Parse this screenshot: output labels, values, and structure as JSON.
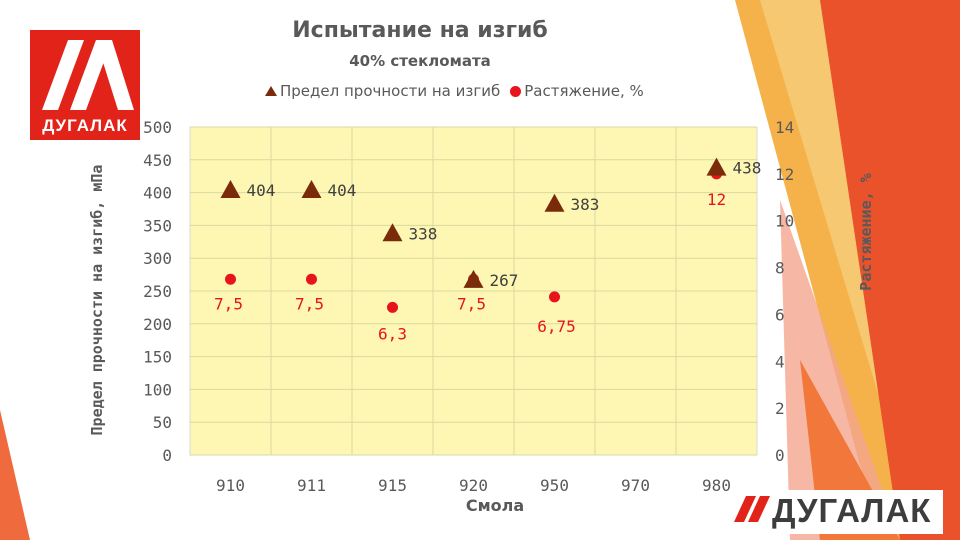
{
  "slide": {
    "logo_top_text": "ДУГАЛАК",
    "logo_bottom_text": "ДУГАЛАК",
    "colors": {
      "accent_orange": "#f08a24",
      "accent_red": "#e2362a",
      "logo_red": "#e2231a"
    }
  },
  "chart_data": {
    "type": "scatter",
    "title": "Испытание на изгиб",
    "subtitle": "40% стекломата",
    "xlabel": "Смола",
    "ylabel_left": "Предел прочности на изгиб, мПа",
    "ylabel_right": "Растяжение, %",
    "categories": [
      "910",
      "911",
      "915",
      "920",
      "950",
      "970",
      "980"
    ],
    "y_left_lim": [
      0,
      500
    ],
    "y_left_ticks": [
      "0",
      "50",
      "100",
      "150",
      "200",
      "250",
      "300",
      "350",
      "400",
      "450",
      "500"
    ],
    "y_right_lim": [
      0,
      14
    ],
    "y_right_ticks": [
      "0",
      "2",
      "4",
      "6",
      "8",
      "10",
      "12",
      "14"
    ],
    "legend_position": "top",
    "grid": true,
    "plot_background": "#fdf7b3",
    "series": [
      {
        "name": "Предел прочности на изгиб",
        "axis": "left",
        "marker": "triangle",
        "color": "#7a2c0a",
        "points": [
          {
            "x": "910",
            "y": 404,
            "label": "404"
          },
          {
            "x": "911",
            "y": 404,
            "label": "404"
          },
          {
            "x": "915",
            "y": 338,
            "label": "338"
          },
          {
            "x": "920",
            "y": 267,
            "label": "267"
          },
          {
            "x": "950",
            "y": 383,
            "label": "383"
          },
          {
            "x": "980",
            "y": 438,
            "label": "438"
          }
        ]
      },
      {
        "name": "Растяжение, %",
        "axis": "right",
        "marker": "circle",
        "color": "#e8141c",
        "points": [
          {
            "x": "910",
            "y": 7.5,
            "label": "7,5"
          },
          {
            "x": "911",
            "y": 7.5,
            "label": "7,5"
          },
          {
            "x": "915",
            "y": 6.3,
            "label": "6,3"
          },
          {
            "x": "920",
            "y": 7.5,
            "label": "7,5"
          },
          {
            "x": "950",
            "y": 6.75,
            "label": "6,75"
          },
          {
            "x": "980",
            "y": 12,
            "label": "12"
          }
        ]
      }
    ]
  }
}
